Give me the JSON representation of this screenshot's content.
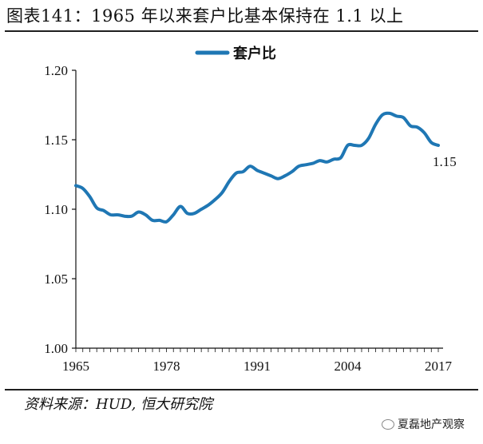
{
  "header": {
    "title": "图表141：1965 年以来套户比基本保持在 1.1 以上"
  },
  "footer": {
    "source": "资料来源：HUD, 恒大研究院",
    "watermark": "夏磊地产观察"
  },
  "colors": {
    "series": "#1f77b4",
    "axis": "#111111"
  },
  "chart_data": {
    "type": "line",
    "legend": {
      "position": "top-center"
    },
    "grid": false,
    "x_ticks": [
      1965,
      1978,
      1991,
      2004,
      2017
    ],
    "y_ticks": [
      "1.00",
      "1.05",
      "1.10",
      "1.15",
      "1.20"
    ],
    "xlim": [
      1965,
      2018
    ],
    "ylim": [
      1.0,
      1.2
    ],
    "end_label": "1.15",
    "series": [
      {
        "name": "套户比",
        "x": [
          1965,
          1966,
          1967,
          1968,
          1969,
          1970,
          1971,
          1972,
          1973,
          1974,
          1975,
          1976,
          1977,
          1978,
          1979,
          1980,
          1981,
          1982,
          1983,
          1984,
          1985,
          1986,
          1987,
          1988,
          1989,
          1990,
          1991,
          1992,
          1993,
          1994,
          1995,
          1996,
          1997,
          1998,
          1999,
          2000,
          2001,
          2002,
          2003,
          2004,
          2005,
          2006,
          2007,
          2008,
          2009,
          2010,
          2011,
          2012,
          2013,
          2014,
          2015,
          2016,
          2017
        ],
        "values": [
          1.117,
          1.115,
          1.109,
          1.101,
          1.099,
          1.096,
          1.096,
          1.095,
          1.095,
          1.098,
          1.096,
          1.092,
          1.092,
          1.091,
          1.096,
          1.102,
          1.097,
          1.097,
          1.1,
          1.103,
          1.107,
          1.112,
          1.12,
          1.126,
          1.127,
          1.131,
          1.128,
          1.126,
          1.124,
          1.122,
          1.124,
          1.127,
          1.131,
          1.132,
          1.133,
          1.135,
          1.134,
          1.136,
          1.137,
          1.146,
          1.146,
          1.146,
          1.151,
          1.161,
          1.168,
          1.169,
          1.167,
          1.166,
          1.16,
          1.159,
          1.155,
          1.148,
          1.146
        ]
      }
    ]
  }
}
